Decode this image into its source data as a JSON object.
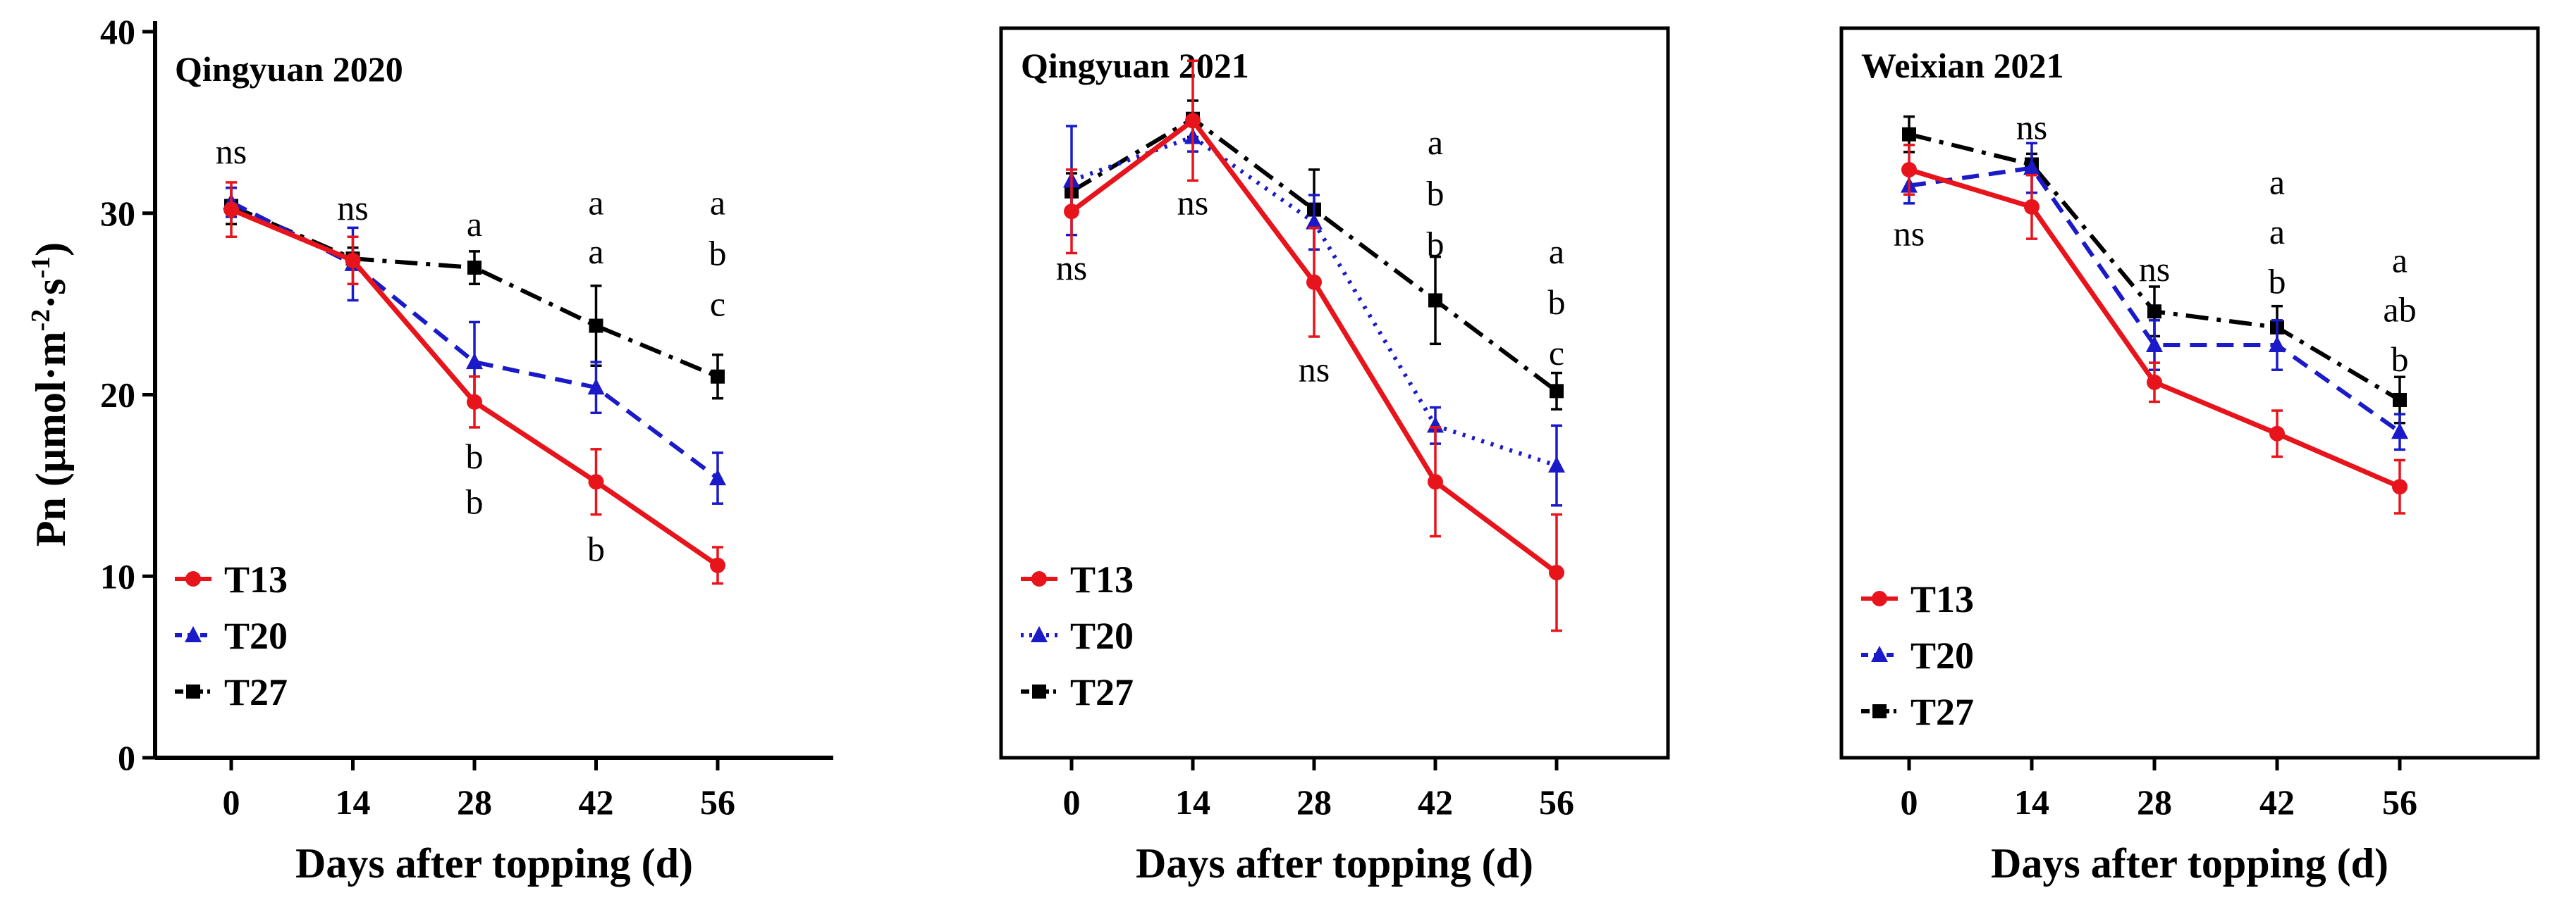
{
  "chart_data": [
    {
      "type": "line",
      "title": "Qingyuan 2020",
      "xlabel": "Days after topping (d)",
      "ylabel": "Pn (μmol·m⁻²·s⁻¹)",
      "ylabel_parts": {
        "base": "Pn (μmol·m",
        "exp1": "-2",
        "mid": "·s",
        "exp2": "-1",
        "end": ")"
      },
      "x": [
        0,
        14,
        28,
        42,
        56
      ],
      "xticks": [
        "0",
        "14",
        "28",
        "42",
        "56"
      ],
      "ylim": [
        0,
        40
      ],
      "yticks": [
        "0",
        "10",
        "20",
        "30",
        "40"
      ],
      "legend": "bottom-left",
      "series": [
        {
          "name": "T13",
          "color": "#e8141b",
          "values": [
            30.2,
            27.4,
            19.6,
            15.2,
            10.6
          ],
          "errors": [
            1.5,
            1.3,
            1.4,
            1.8,
            1.0
          ]
        },
        {
          "name": "T20",
          "color": "#1a1ac8",
          "values": [
            30.6,
            27.2,
            21.8,
            20.4,
            15.4
          ],
          "errors": [
            0.8,
            2.0,
            2.2,
            1.4,
            1.4
          ]
        },
        {
          "name": "T27",
          "color": "#000000",
          "values": [
            30.4,
            27.5,
            27.0,
            23.8,
            21.0
          ],
          "errors": [
            1.0,
            0.6,
            0.9,
            2.2,
            1.2
          ]
        }
      ],
      "annotations": [
        {
          "x": 0,
          "y": 33.4,
          "text": "ns"
        },
        {
          "x": 14,
          "y": 30.3,
          "text": "ns"
        },
        {
          "x": 28,
          "y": 29.4,
          "text": "a"
        },
        {
          "x": 28,
          "y": 16.6,
          "text": "b"
        },
        {
          "x": 28,
          "y": 14.1,
          "text": "b"
        },
        {
          "x": 42,
          "y": 30.6,
          "text": "a"
        },
        {
          "x": 42,
          "y": 27.9,
          "text": "a"
        },
        {
          "x": 42,
          "y": 11.5,
          "text": "b"
        },
        {
          "x": 56,
          "y": 30.6,
          "text": "a"
        },
        {
          "x": 56,
          "y": 27.8,
          "text": "b"
        },
        {
          "x": 56,
          "y": 25.0,
          "text": "c"
        }
      ]
    },
    {
      "type": "line",
      "title": "Qingyuan 2021",
      "xlabel": "Days after topping (d)",
      "ylabel": "",
      "x": [
        0,
        14,
        28,
        42,
        56
      ],
      "xticks": [
        "0",
        "14",
        "28",
        "42",
        "56"
      ],
      "ylim": [
        0,
        40
      ],
      "legend": "bottom-left",
      "series": [
        {
          "name": "T13",
          "color": "#e8141b",
          "values": [
            30.1,
            35.1,
            26.2,
            15.2,
            10.2
          ],
          "errors": [
            2.3,
            3.3,
            3.0,
            3.0,
            3.2
          ]
        },
        {
          "name": "T20",
          "color": "#1a1ac8",
          "values": [
            31.8,
            34.2,
            29.5,
            18.3,
            16.1
          ],
          "errors": [
            3.0,
            0.8,
            1.5,
            1.0,
            2.2
          ]
        },
        {
          "name": "T27",
          "color": "#000000",
          "values": [
            31.2,
            35.2,
            30.2,
            25.2,
            20.2
          ],
          "errors": [
            1.0,
            1.0,
            2.2,
            2.4,
            1.0
          ]
        }
      ],
      "annotations": [
        {
          "x": 0,
          "y": 27.0,
          "text": "ns"
        },
        {
          "x": 14,
          "y": 30.6,
          "text": "ns"
        },
        {
          "x": 28,
          "y": 21.4,
          "text": "ns"
        },
        {
          "x": 42,
          "y": 33.9,
          "text": "a"
        },
        {
          "x": 42,
          "y": 31.1,
          "text": "b"
        },
        {
          "x": 42,
          "y": 28.3,
          "text": "b"
        },
        {
          "x": 56,
          "y": 27.9,
          "text": "a"
        },
        {
          "x": 56,
          "y": 25.1,
          "text": "b"
        },
        {
          "x": 56,
          "y": 22.3,
          "text": "c"
        }
      ]
    },
    {
      "type": "line",
      "title": "Weixian 2021",
      "xlabel": "Days after topping (d)",
      "ylabel": "",
      "x": [
        0,
        14,
        28,
        42,
        56
      ],
      "xticks": [
        "0",
        "14",
        "28",
        "42",
        "56"
      ],
      "ylim": [
        0,
        40
      ],
      "legend": "bottom-left",
      "series": [
        {
          "name": "T13",
          "color": "#e8141b",
          "values": [
            33.2,
            31.1,
            21.2,
            18.3,
            15.3
          ],
          "errors": [
            1.4,
            1.8,
            1.1,
            1.3,
            1.5
          ]
        },
        {
          "name": "T20",
          "color": "#1a1ac8",
          "values": [
            32.3,
            33.3,
            23.3,
            23.3,
            18.4
          ],
          "errors": [
            1.0,
            1.4,
            1.4,
            1.4,
            1.0
          ]
        },
        {
          "name": "T27",
          "color": "#000000",
          "values": [
            35.2,
            33.5,
            25.2,
            24.3,
            20.2
          ],
          "errors": [
            1.0,
            0.6,
            1.4,
            1.2,
            1.3
          ]
        }
      ],
      "annotations": [
        {
          "x": 0,
          "y": 29.6,
          "text": "ns"
        },
        {
          "x": 14,
          "y": 35.6,
          "text": "ns"
        },
        {
          "x": 28,
          "y": 27.6,
          "text": "ns"
        },
        {
          "x": 42,
          "y": 32.5,
          "text": "a"
        },
        {
          "x": 42,
          "y": 29.7,
          "text": "a"
        },
        {
          "x": 42,
          "y": 26.9,
          "text": "b"
        },
        {
          "x": 56,
          "y": 28.1,
          "text": "a"
        },
        {
          "x": 56,
          "y": 25.3,
          "text": "ab"
        },
        {
          "x": 56,
          "y": 22.5,
          "text": "b"
        }
      ]
    }
  ]
}
